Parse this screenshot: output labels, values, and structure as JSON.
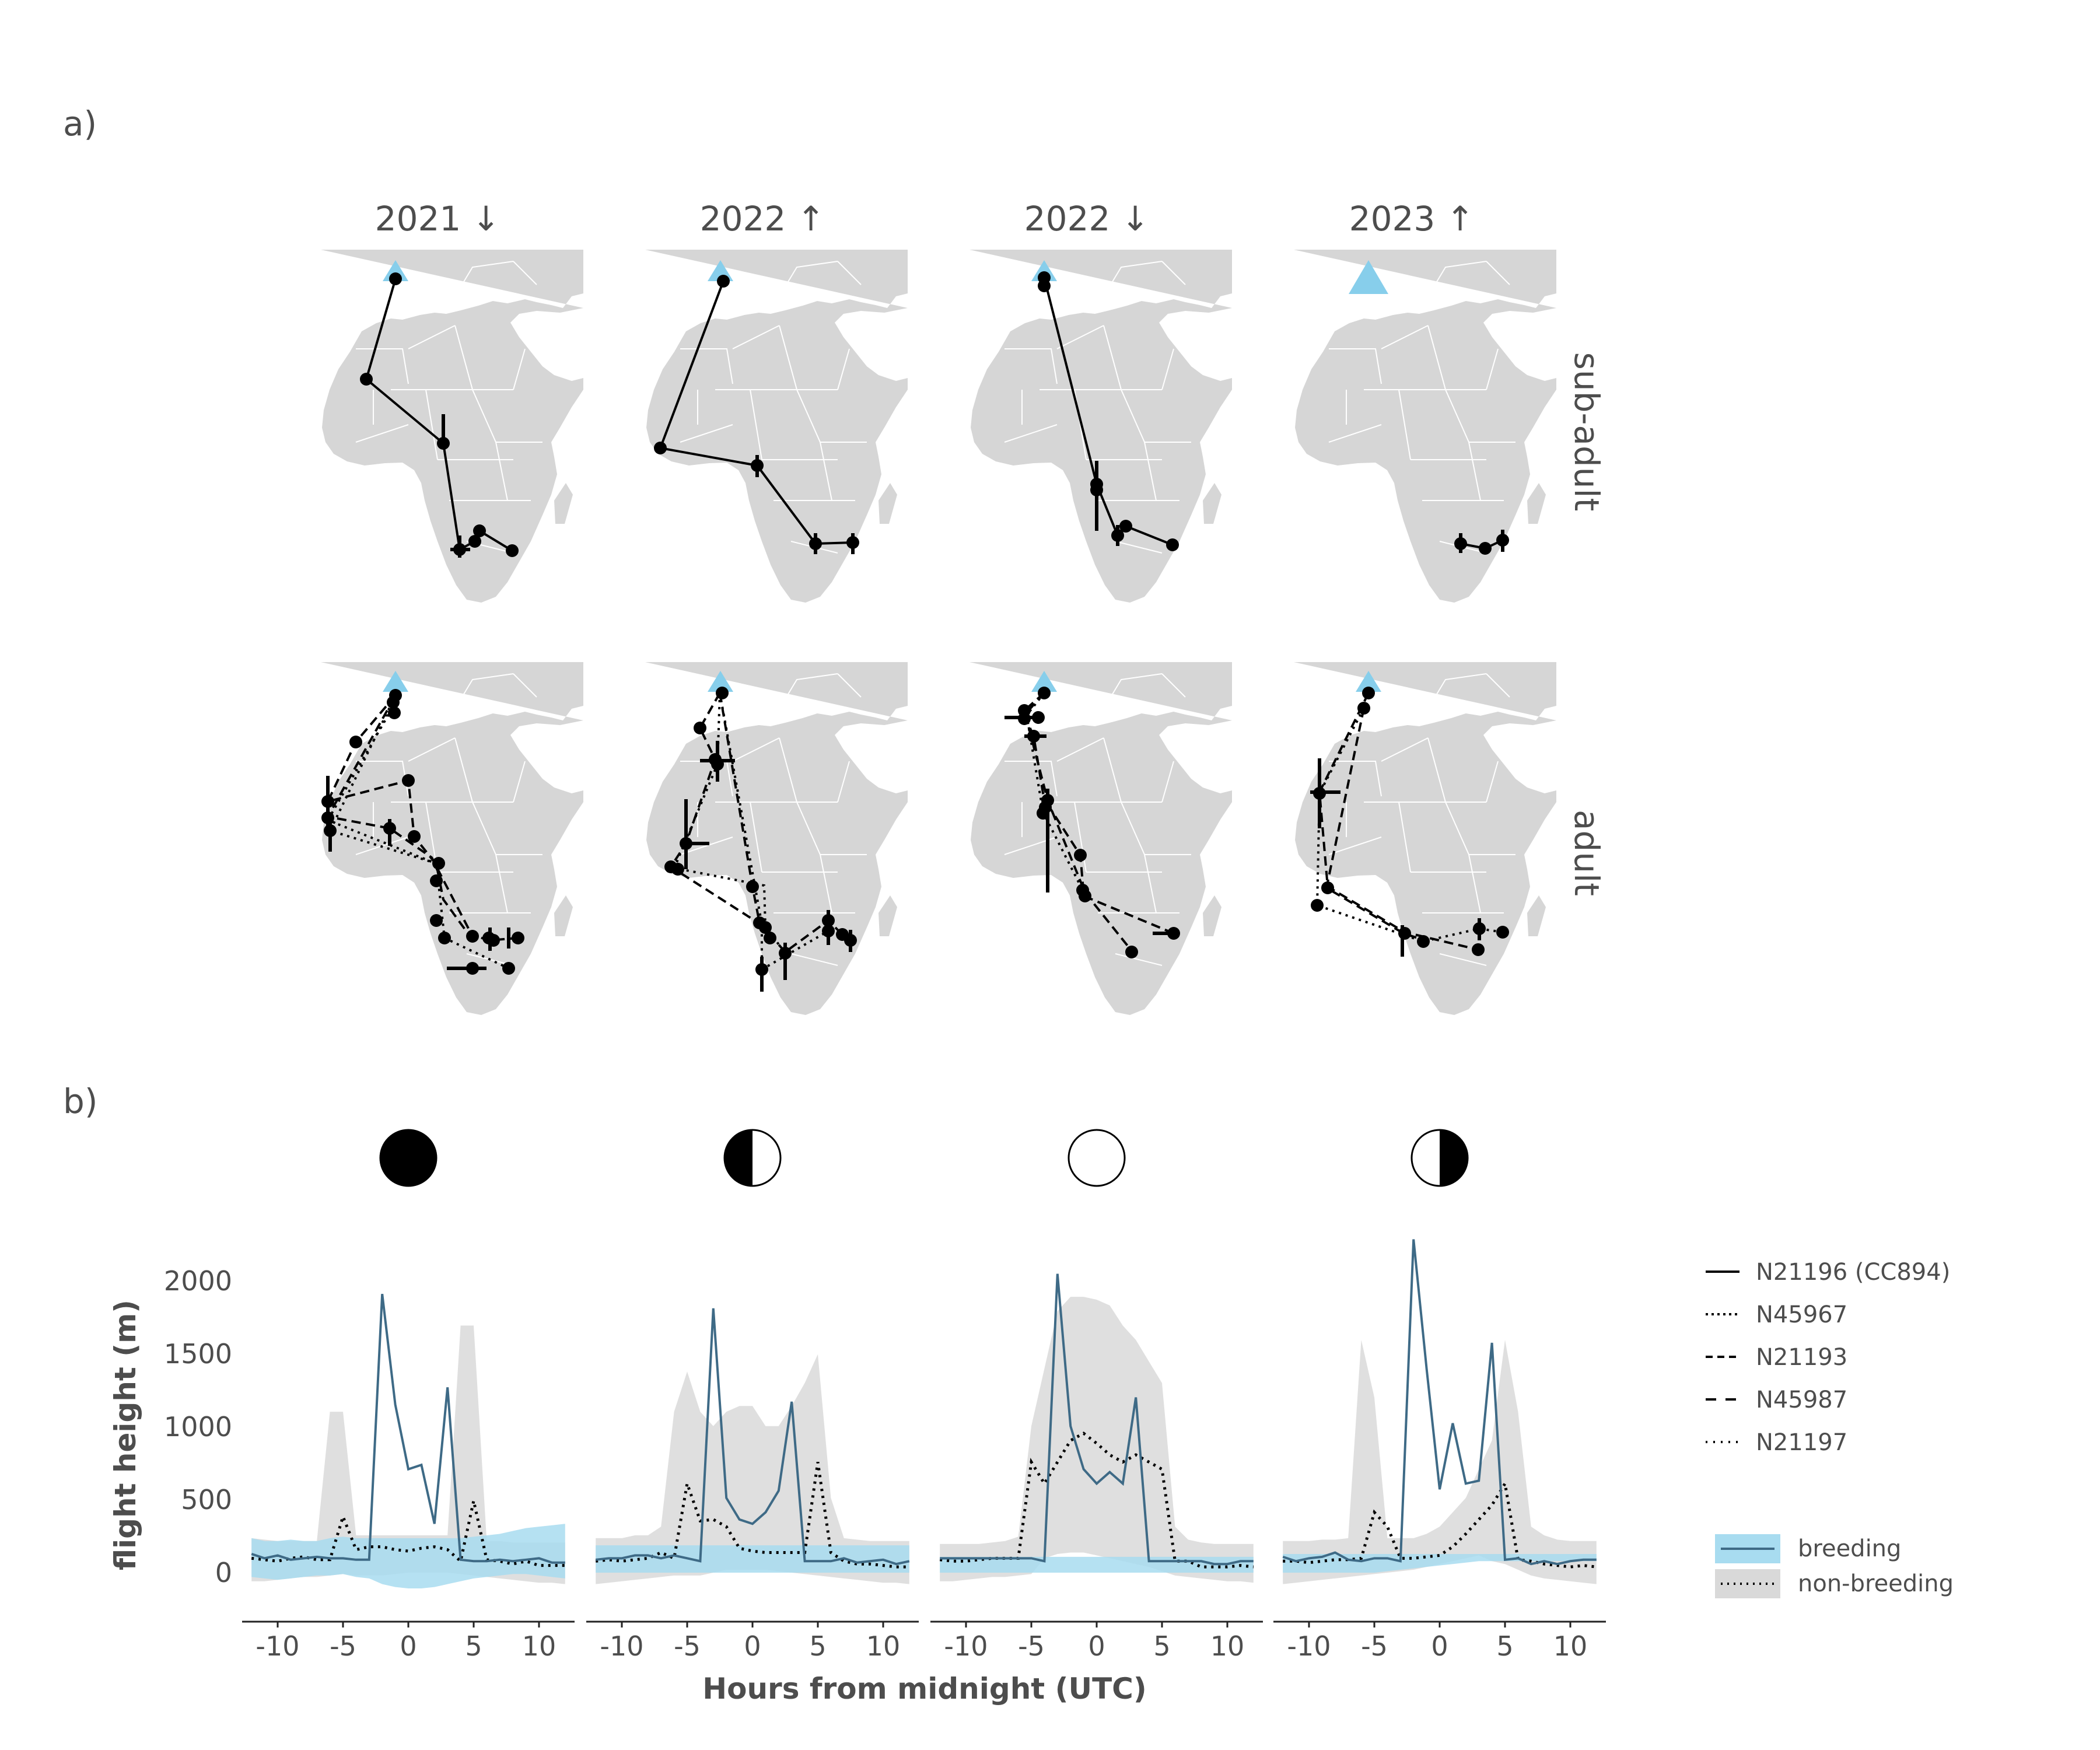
{
  "panels": {
    "a": "a)",
    "b": "b)"
  },
  "maps": {
    "columns": [
      "2021 ↓",
      "2022 ↑",
      "2022 ↓",
      "2023 ↑"
    ],
    "rows": [
      "sub-adult",
      "adult"
    ],
    "colors": {
      "land": "#d6d6d6",
      "site": "#87ceeb",
      "track": "#000000"
    }
  },
  "moon_phases": [
    "new",
    "first-quarter",
    "full",
    "last-quarter"
  ],
  "chart_data": {
    "type": "line",
    "xlabel": "Hours from midnight (UTC)",
    "ylabel": "flight height (m)",
    "xticks": [
      -10,
      -5,
      0,
      5,
      10
    ],
    "yticks": [
      0,
      500,
      1000,
      1500,
      2000
    ],
    "xlim": [
      -12.5,
      12.5
    ],
    "ylim": [
      -380,
      2300
    ],
    "x": [
      -12,
      -11,
      -10,
      -9,
      -8,
      -7,
      -6,
      -5,
      -4,
      -3,
      -2,
      -1,
      0,
      1,
      2,
      3,
      4,
      5,
      6,
      7,
      8,
      9,
      10,
      11,
      12
    ],
    "facets": [
      {
        "moon": "new",
        "breeding": [
          10,
          -20,
          0,
          -30,
          -20,
          -10,
          -20,
          -20,
          -30,
          -30,
          1820,
          1050,
          600,
          630,
          220,
          1170,
          -30,
          -40,
          -40,
          -30,
          -40,
          -30,
          -20,
          -50,
          -50
        ],
        "nonbreeding": [
          -20,
          -30,
          -40,
          -20,
          -10,
          -30,
          -30,
          270,
          40,
          60,
          60,
          40,
          30,
          50,
          60,
          40,
          -40,
          380,
          -30,
          -40,
          -60,
          -40,
          -70,
          -70,
          -70
        ],
        "breeding_band": [
          [
            -150,
            120
          ],
          [
            -160,
            100
          ],
          [
            -170,
            100
          ],
          [
            -160,
            110
          ],
          [
            -150,
            100
          ],
          [
            -140,
            100
          ],
          [
            -140,
            120
          ],
          [
            -130,
            130
          ],
          [
            -150,
            120
          ],
          [
            -160,
            120
          ],
          [
            -200,
            120
          ],
          [
            -220,
            120
          ],
          [
            -230,
            120
          ],
          [
            -230,
            120
          ],
          [
            -220,
            120
          ],
          [
            -200,
            120
          ],
          [
            -180,
            120
          ],
          [
            -160,
            130
          ],
          [
            -150,
            140
          ],
          [
            -140,
            150
          ],
          [
            -130,
            170
          ],
          [
            -130,
            190
          ],
          [
            -140,
            200
          ],
          [
            -150,
            210
          ],
          [
            -160,
            220
          ]
        ],
        "nonbreeding_band": [
          [
            -180,
            120
          ],
          [
            -180,
            110
          ],
          [
            -170,
            100
          ],
          [
            -160,
            100
          ],
          [
            -150,
            100
          ],
          [
            -150,
            100
          ],
          [
            -140,
            1000
          ],
          [
            -130,
            1000
          ],
          [
            -140,
            140
          ],
          [
            -140,
            140
          ],
          [
            -140,
            140
          ],
          [
            -130,
            140
          ],
          [
            -120,
            140
          ],
          [
            -120,
            140
          ],
          [
            -120,
            140
          ],
          [
            -120,
            140
          ],
          [
            -130,
            1600
          ],
          [
            -140,
            1600
          ],
          [
            -150,
            100
          ],
          [
            -160,
            100
          ],
          [
            -170,
            90
          ],
          [
            -180,
            90
          ],
          [
            -190,
            90
          ],
          [
            -190,
            90
          ],
          [
            -200,
            90
          ]
        ]
      },
      {
        "moon": "first-quarter",
        "breeding": [
          -30,
          -20,
          -20,
          0,
          0,
          -20,
          0,
          -20,
          -40,
          1720,
          400,
          250,
          220,
          300,
          450,
          1070,
          -40,
          -40,
          -40,
          -20,
          -50,
          -40,
          -30,
          -60,
          -40
        ],
        "nonbreeding": [
          -40,
          -30,
          -40,
          -30,
          -20,
          20,
          -20,
          500,
          240,
          250,
          200,
          50,
          30,
          20,
          20,
          20,
          20,
          650,
          20,
          -40,
          -60,
          -60,
          -70,
          -80,
          -80
        ],
        "breeding_band": [
          [
            -120,
            70
          ],
          [
            -120,
            70
          ],
          [
            -120,
            70
          ],
          [
            -120,
            70
          ],
          [
            -120,
            70
          ],
          [
            -120,
            70
          ],
          [
            -120,
            70
          ],
          [
            -120,
            70
          ],
          [
            -120,
            70
          ],
          [
            -120,
            70
          ],
          [
            -120,
            70
          ],
          [
            -120,
            70
          ],
          [
            -120,
            70
          ],
          [
            -120,
            70
          ],
          [
            -120,
            70
          ],
          [
            -120,
            70
          ],
          [
            -120,
            70
          ],
          [
            -120,
            70
          ],
          [
            -120,
            70
          ],
          [
            -120,
            70
          ],
          [
            -120,
            70
          ],
          [
            -120,
            70
          ],
          [
            -120,
            70
          ],
          [
            -120,
            70
          ],
          [
            -120,
            70
          ]
        ],
        "nonbreeding_band": [
          [
            -200,
            120
          ],
          [
            -190,
            120
          ],
          [
            -180,
            120
          ],
          [
            -170,
            140
          ],
          [
            -160,
            140
          ],
          [
            -150,
            200
          ],
          [
            -140,
            1000
          ],
          [
            -140,
            1280
          ],
          [
            -140,
            1000
          ],
          [
            -120,
            900
          ],
          [
            -100,
            1000
          ],
          [
            -100,
            1040
          ],
          [
            -100,
            1040
          ],
          [
            -100,
            900
          ],
          [
            -110,
            900
          ],
          [
            -120,
            1040
          ],
          [
            -130,
            1200
          ],
          [
            -140,
            1400
          ],
          [
            -150,
            400
          ],
          [
            -160,
            120
          ],
          [
            -170,
            110
          ],
          [
            -180,
            100
          ],
          [
            -190,
            100
          ],
          [
            -190,
            100
          ],
          [
            -200,
            100
          ]
        ]
      },
      {
        "moon": "full",
        "breeding": [
          -20,
          -20,
          -20,
          -20,
          -20,
          -20,
          -20,
          -20,
          -40,
          1960,
          900,
          600,
          500,
          580,
          500,
          1100,
          -40,
          -40,
          -40,
          -40,
          -40,
          -60,
          -60,
          -40,
          -40
        ],
        "nonbreeding": [
          -30,
          -40,
          -40,
          -30,
          -20,
          -20,
          -20,
          650,
          500,
          650,
          800,
          850,
          780,
          700,
          650,
          700,
          650,
          600,
          -40,
          -40,
          -80,
          -80,
          -80,
          -70,
          -80
        ],
        "breeding_band": [
          [
            -120,
            -10
          ],
          [
            -120,
            -10
          ],
          [
            -120,
            -10
          ],
          [
            -120,
            -10
          ],
          [
            -120,
            -10
          ],
          [
            -120,
            -10
          ],
          [
            -120,
            -10
          ],
          [
            -120,
            -10
          ],
          [
            -120,
            -10
          ],
          [
            -120,
            -10
          ],
          [
            -120,
            -10
          ],
          [
            -120,
            -10
          ],
          [
            -120,
            -10
          ],
          [
            -120,
            -10
          ],
          [
            -120,
            -10
          ],
          [
            -120,
            -10
          ],
          [
            -120,
            -10
          ],
          [
            -120,
            -10
          ],
          [
            -120,
            -10
          ],
          [
            -120,
            -10
          ],
          [
            -120,
            -10
          ],
          [
            -120,
            -10
          ],
          [
            -120,
            -10
          ],
          [
            -120,
            -10
          ],
          [
            -120,
            -10
          ]
        ],
        "nonbreeding_band": [
          [
            -180,
            80
          ],
          [
            -180,
            80
          ],
          [
            -170,
            80
          ],
          [
            -160,
            80
          ],
          [
            -150,
            90
          ],
          [
            -150,
            100
          ],
          [
            -140,
            130
          ],
          [
            -130,
            900
          ],
          [
            -20,
            1300
          ],
          [
            10,
            1700
          ],
          [
            20,
            1800
          ],
          [
            20,
            1800
          ],
          [
            0,
            1780
          ],
          [
            -20,
            1740
          ],
          [
            -40,
            1600
          ],
          [
            -60,
            1500
          ],
          [
            -80,
            1350
          ],
          [
            -110,
            1200
          ],
          [
            -140,
            200
          ],
          [
            -150,
            110
          ],
          [
            -160,
            90
          ],
          [
            -170,
            80
          ],
          [
            -180,
            80
          ],
          [
            -180,
            80
          ],
          [
            -190,
            80
          ]
        ]
      },
      {
        "moon": "last-quarter",
        "breeding": [
          -10,
          -40,
          -20,
          -10,
          20,
          -30,
          -40,
          -20,
          -20,
          -40,
          2200,
          1300,
          460,
          920,
          500,
          520,
          1480,
          -30,
          -20,
          -60,
          -40,
          -60,
          -40,
          -30,
          -30
        ],
        "nonbreeding": [
          -40,
          -40,
          -50,
          -40,
          -30,
          -30,
          -20,
          300,
          200,
          -20,
          -20,
          -10,
          0,
          60,
          150,
          250,
          350,
          500,
          -30,
          -40,
          -60,
          -70,
          -80,
          -70,
          -80
        ],
        "breeding_band": [
          [
            -120,
            10
          ],
          [
            -120,
            10
          ],
          [
            -120,
            10
          ],
          [
            -120,
            10
          ],
          [
            -120,
            10
          ],
          [
            -120,
            10
          ],
          [
            -120,
            10
          ],
          [
            -120,
            10
          ],
          [
            -110,
            10
          ],
          [
            -100,
            10
          ],
          [
            -90,
            10
          ],
          [
            -80,
            10
          ],
          [
            -70,
            10
          ],
          [
            -60,
            10
          ],
          [
            -50,
            10
          ],
          [
            -40,
            10
          ],
          [
            -40,
            10
          ],
          [
            -40,
            10
          ],
          [
            -40,
            10
          ],
          [
            -40,
            10
          ],
          [
            -40,
            10
          ],
          [
            -40,
            10
          ],
          [
            -40,
            10
          ],
          [
            -40,
            10
          ],
          [
            -40,
            10
          ]
        ],
        "nonbreeding_band": [
          [
            -200,
            100
          ],
          [
            -190,
            100
          ],
          [
            -180,
            100
          ],
          [
            -170,
            110
          ],
          [
            -160,
            110
          ],
          [
            -150,
            120
          ],
          [
            -140,
            1500
          ],
          [
            -130,
            1100
          ],
          [
            -120,
            120
          ],
          [
            -110,
            120
          ],
          [
            -100,
            120
          ],
          [
            -80,
            150
          ],
          [
            -60,
            200
          ],
          [
            -40,
            300
          ],
          [
            -20,
            400
          ],
          [
            0,
            600
          ],
          [
            -40,
            800
          ],
          [
            -60,
            1500
          ],
          [
            -100,
            1000
          ],
          [
            -140,
            200
          ],
          [
            -160,
            140
          ],
          [
            -170,
            110
          ],
          [
            -180,
            100
          ],
          [
            -190,
            100
          ],
          [
            -200,
            100
          ]
        ]
      }
    ],
    "colors": {
      "breeding_line": "#3e6a86",
      "breeding_band": "#a8dcf0",
      "nonbreeding_band": "#d9d9d9",
      "nonbreeding_line": "#000000"
    },
    "legend_ids": [
      {
        "name": "N21196 (CC894)",
        "dash": "solid"
      },
      {
        "name": "N45967",
        "dash": "dotted-tight"
      },
      {
        "name": "N21193",
        "dash": "dashed"
      },
      {
        "name": "N45987",
        "dash": "dashed-long"
      },
      {
        "name": "N21197",
        "dash": "dotted"
      }
    ],
    "legend_groups": [
      {
        "name": "breeding"
      },
      {
        "name": "non-breeding"
      }
    ]
  }
}
